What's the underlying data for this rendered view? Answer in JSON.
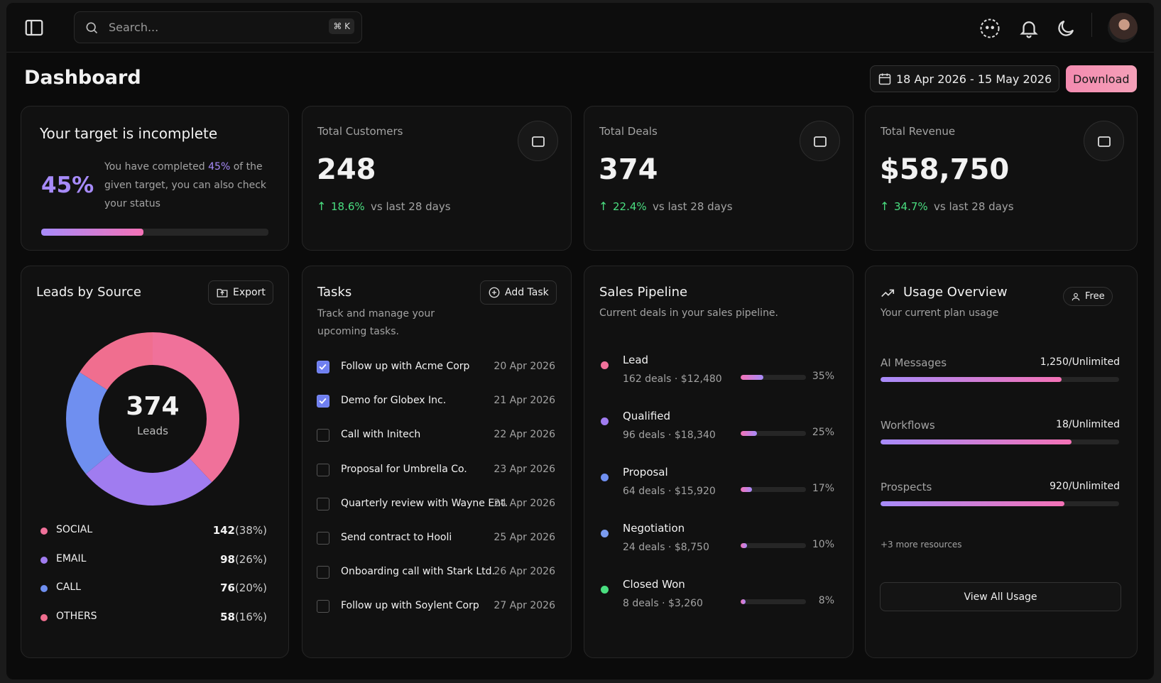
{
  "topbar": {
    "search_placeholder": "Search...",
    "shortcut": "⌘ K"
  },
  "header": {
    "title": "Dashboard",
    "date_range": "18 Apr 2026 - 15 May 2026",
    "download": "Download"
  },
  "target": {
    "title": "Your target is incomplete",
    "percent": {
      "value": 45,
      "label": "45%"
    },
    "text_before": "You have completed",
    "text_after": "of the given target, you can also check your status"
  },
  "stats": [
    {
      "title": "Total Customers",
      "value": "248",
      "change": "18.6%",
      "compare": "vs last 28 days"
    },
    {
      "title": "Total Deals",
      "value": "374",
      "change": "22.4%",
      "compare": "vs last 28 days"
    },
    {
      "title": "Total Revenue",
      "value": "$58,750",
      "change": "34.7%",
      "compare": "vs last 28 days"
    }
  ],
  "leads": {
    "title": "Leads by Source",
    "export": "Export",
    "total": "374",
    "total_label": "Leads",
    "sources": [
      {
        "name": "SOCIAL",
        "count": 142,
        "percent": 38,
        "percent_label": "(38%)",
        "color": "#f0719a"
      },
      {
        "name": "EMAIL",
        "count": 98,
        "percent": 26,
        "percent_label": "(26%)",
        "color": "#a07cf0"
      },
      {
        "name": "CALL",
        "count": 76,
        "percent": 20,
        "percent_label": "(20%)",
        "color": "#6f8ff0"
      },
      {
        "name": "OTHERS",
        "count": 58,
        "percent": 16,
        "percent_label": "(16%)",
        "color": "#f06e8f"
      }
    ]
  },
  "tasks": {
    "title": "Tasks",
    "subtitle": "Track and manage your upcoming tasks.",
    "add": "Add Task",
    "items": [
      {
        "label": "Follow up with Acme Corp",
        "date": "20 Apr 2026",
        "done": true
      },
      {
        "label": "Demo for Globex Inc.",
        "date": "21 Apr 2026",
        "done": true
      },
      {
        "label": "Call with Initech",
        "date": "22 Apr 2026",
        "done": false
      },
      {
        "label": "Proposal for Umbrella Co.",
        "date": "23 Apr 2026",
        "done": false
      },
      {
        "label": "Quarterly review with Wayne Ent.",
        "date": "24 Apr 2026",
        "done": false
      },
      {
        "label": "Send contract to Hooli",
        "date": "25 Apr 2026",
        "done": false
      },
      {
        "label": "Onboarding call with Stark Ltd.",
        "date": "26 Apr 2026",
        "done": false
      },
      {
        "label": "Follow up with Soylent Corp",
        "date": "27 Apr 2026",
        "done": false
      }
    ]
  },
  "pipeline": {
    "title": "Sales Pipeline",
    "subtitle": "Current deals in your sales pipeline.",
    "stages": [
      {
        "name": "Lead",
        "detail": "162 deals · $12,480",
        "percent": 35,
        "percent_label": "35%",
        "color": "#f0719a"
      },
      {
        "name": "Qualified",
        "detail": "96 deals · $18,340",
        "percent": 25,
        "percent_label": "25%",
        "color": "#a07cf0"
      },
      {
        "name": "Proposal",
        "detail": "64 deals · $15,920",
        "percent": 17,
        "percent_label": "17%",
        "color": "#6f8ff0"
      },
      {
        "name": "Negotiation",
        "detail": "24 deals · $8,750",
        "percent": 10,
        "percent_label": "10%",
        "color": "#7b9cf0"
      },
      {
        "name": "Closed Won",
        "detail": "8 deals · $3,260",
        "percent": 8,
        "percent_label": "8%",
        "color": "#4ade80"
      }
    ]
  },
  "usage": {
    "title": "Usage Overview",
    "plan": "Free",
    "subtitle": "Your current plan usage",
    "items": [
      {
        "name": "AI Messages",
        "value": "1,250/Unlimited",
        "fill": 76
      },
      {
        "name": "Workflows",
        "value": "18/Unlimited",
        "fill": 80
      },
      {
        "name": "Prospects",
        "value": "920/Unlimited",
        "fill": 77
      }
    ],
    "more": "+3 more resources",
    "button": "View All Usage"
  }
}
